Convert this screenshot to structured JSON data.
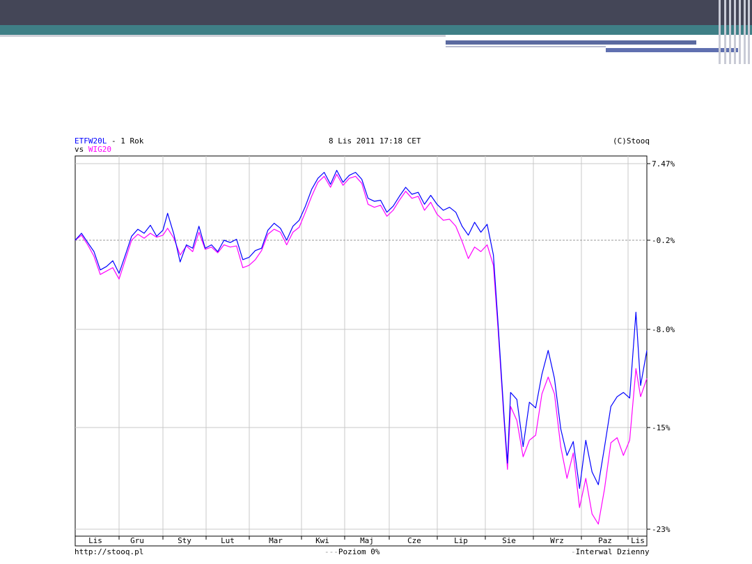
{
  "header": {
    "symbol": "ETFW20L",
    "period": " - 1 Rok",
    "vs_label": "vs ",
    "compare_symbol": "WIG20",
    "datetime": "8 Lis 2011 17:18 CET",
    "copyright": "(C)Stooq"
  },
  "footer": {
    "url": "http://stooq.pl",
    "level_label": "Poziom 0%",
    "interval_label": "Interwal Dzienny"
  },
  "colors": {
    "series_primary": "#0000ff",
    "series_secondary": "#ff00ff",
    "grid": "#c8c8c8",
    "zero_line": "#999999"
  },
  "chart_data": {
    "type": "line",
    "title": "ETFW20L - 1 Rok vs WIG20",
    "xlabel": "",
    "ylabel": "",
    "x_ticks": [
      "Lis",
      "Gru",
      "Sty",
      "Lut",
      "Mar",
      "Kwi",
      "Maj",
      "Cze",
      "Lip",
      "Sie",
      "Wrz",
      "Paz",
      "Lis"
    ],
    "y_ticks": [
      "7.47%",
      "-0.2%",
      "-8.0%",
      "-15%",
      "-23%"
    ],
    "y_tick_values": [
      7.47,
      -0.2,
      -8.0,
      -15.0,
      -23.0
    ],
    "ylim": [
      -23.0,
      7.47
    ],
    "zero_level": -0.2,
    "grid": true,
    "x_start_date": "2010-11-08",
    "x_end_date": "2011-11-08",
    "series": [
      {
        "name": "ETFW20L",
        "color": "#0000ff",
        "points": [
          [
            "2010-11-08",
            -0.2
          ],
          [
            "2010-11-12",
            0.5
          ],
          [
            "2010-11-16",
            -0.4
          ],
          [
            "2010-11-20",
            -1.2
          ],
          [
            "2010-11-24",
            -2.8
          ],
          [
            "2010-11-28",
            -2.5
          ],
          [
            "2010-12-02",
            -2.0
          ],
          [
            "2010-12-06",
            -3.1
          ],
          [
            "2010-12-10",
            -1.5
          ],
          [
            "2010-12-14",
            0.2
          ],
          [
            "2010-12-18",
            0.9
          ],
          [
            "2010-12-22",
            0.5
          ],
          [
            "2010-12-26",
            1.3
          ],
          [
            "2010-12-30",
            0.2
          ],
          [
            "2011-01-03",
            0.8
          ],
          [
            "2011-01-06",
            2.5
          ],
          [
            "2011-01-10",
            0.4
          ],
          [
            "2011-01-14",
            -2.1
          ],
          [
            "2011-01-18",
            -0.6
          ],
          [
            "2011-01-22",
            -0.9
          ],
          [
            "2011-01-26",
            1.2
          ],
          [
            "2011-01-30",
            -0.9
          ],
          [
            "2011-02-03",
            -0.6
          ],
          [
            "2011-02-07",
            -1.2
          ],
          [
            "2011-02-11",
            -0.2
          ],
          [
            "2011-02-15",
            -0.4
          ],
          [
            "2011-02-19",
            -0.1
          ],
          [
            "2011-02-23",
            -1.9
          ],
          [
            "2011-02-27",
            -1.7
          ],
          [
            "2011-03-03",
            -1.1
          ],
          [
            "2011-03-07",
            -0.9
          ],
          [
            "2011-03-11",
            0.8
          ],
          [
            "2011-03-15",
            1.5
          ],
          [
            "2011-03-19",
            1.0
          ],
          [
            "2011-03-23",
            -0.2
          ],
          [
            "2011-03-27",
            1.2
          ],
          [
            "2011-03-31",
            1.8
          ],
          [
            "2011-04-04",
            3.2
          ],
          [
            "2011-04-08",
            4.9
          ],
          [
            "2011-04-12",
            6.0
          ],
          [
            "2011-04-16",
            6.6
          ],
          [
            "2011-04-20",
            5.4
          ],
          [
            "2011-04-24",
            6.8
          ],
          [
            "2011-04-28",
            5.6
          ],
          [
            "2011-05-02",
            6.3
          ],
          [
            "2011-05-06",
            6.6
          ],
          [
            "2011-05-10",
            5.9
          ],
          [
            "2011-05-14",
            4.0
          ],
          [
            "2011-05-18",
            3.7
          ],
          [
            "2011-05-22",
            3.8
          ],
          [
            "2011-05-26",
            2.6
          ],
          [
            "2011-05-30",
            3.2
          ],
          [
            "2011-06-03",
            4.2
          ],
          [
            "2011-06-07",
            5.1
          ],
          [
            "2011-06-11",
            4.4
          ],
          [
            "2011-06-15",
            4.6
          ],
          [
            "2011-06-19",
            3.4
          ],
          [
            "2011-06-23",
            4.3
          ],
          [
            "2011-06-27",
            3.4
          ],
          [
            "2011-07-01",
            2.8
          ],
          [
            "2011-07-05",
            3.1
          ],
          [
            "2011-07-09",
            2.6
          ],
          [
            "2011-07-13",
            1.2
          ],
          [
            "2011-07-17",
            0.3
          ],
          [
            "2011-07-21",
            1.6
          ],
          [
            "2011-07-25",
            0.6
          ],
          [
            "2011-07-29",
            1.4
          ],
          [
            "2011-08-02",
            -1.5
          ],
          [
            "2011-08-05",
            -7.5
          ],
          [
            "2011-08-09",
            -14.5
          ],
          [
            "2011-08-11",
            -17.8
          ],
          [
            "2011-08-13",
            -12.5
          ],
          [
            "2011-08-17",
            -13.0
          ],
          [
            "2011-08-21",
            -16.5
          ],
          [
            "2011-08-25",
            -13.2
          ],
          [
            "2011-08-29",
            -13.6
          ],
          [
            "2011-09-02",
            -11.2
          ],
          [
            "2011-09-06",
            -9.5
          ],
          [
            "2011-09-10",
            -11.5
          ],
          [
            "2011-09-14",
            -15.1
          ],
          [
            "2011-09-18",
            -17.2
          ],
          [
            "2011-09-22",
            -16.1
          ],
          [
            "2011-09-26",
            -19.8
          ],
          [
            "2011-09-30",
            -16.0
          ],
          [
            "2011-10-04",
            -18.5
          ],
          [
            "2011-10-08",
            -19.5
          ],
          [
            "2011-10-12",
            -16.5
          ],
          [
            "2011-10-16",
            -13.5
          ],
          [
            "2011-10-20",
            -12.8
          ],
          [
            "2011-10-24",
            -12.5
          ],
          [
            "2011-10-28",
            -12.9
          ],
          [
            "2011-11-01",
            -6.5
          ],
          [
            "2011-11-04",
            -12.0
          ],
          [
            "2011-11-08",
            -9.5
          ]
        ]
      },
      {
        "name": "WIG20",
        "color": "#ff00ff",
        "points": [
          [
            "2010-11-08",
            -0.2
          ],
          [
            "2010-11-12",
            0.3
          ],
          [
            "2010-11-16",
            -0.6
          ],
          [
            "2010-11-20",
            -1.6
          ],
          [
            "2010-11-24",
            -3.2
          ],
          [
            "2010-11-28",
            -2.9
          ],
          [
            "2010-12-02",
            -2.6
          ],
          [
            "2010-12-06",
            -3.6
          ],
          [
            "2010-12-10",
            -1.9
          ],
          [
            "2010-12-14",
            -0.2
          ],
          [
            "2010-12-18",
            0.4
          ],
          [
            "2010-12-22",
            0.0
          ],
          [
            "2010-12-26",
            0.5
          ],
          [
            "2010-12-30",
            0.1
          ],
          [
            "2011-01-03",
            0.3
          ],
          [
            "2011-01-06",
            1.0
          ],
          [
            "2011-01-10",
            0.0
          ],
          [
            "2011-01-14",
            -1.5
          ],
          [
            "2011-01-18",
            -0.7
          ],
          [
            "2011-01-22",
            -1.2
          ],
          [
            "2011-01-26",
            0.6
          ],
          [
            "2011-01-30",
            -1.0
          ],
          [
            "2011-02-03",
            -0.8
          ],
          [
            "2011-02-07",
            -1.3
          ],
          [
            "2011-02-11",
            -0.6
          ],
          [
            "2011-02-15",
            -0.8
          ],
          [
            "2011-02-19",
            -0.7
          ],
          [
            "2011-02-23",
            -2.6
          ],
          [
            "2011-02-27",
            -2.4
          ],
          [
            "2011-03-03",
            -1.9
          ],
          [
            "2011-03-07",
            -1.1
          ],
          [
            "2011-03-11",
            0.4
          ],
          [
            "2011-03-15",
            0.9
          ],
          [
            "2011-03-19",
            0.6
          ],
          [
            "2011-03-23",
            -0.6
          ],
          [
            "2011-03-27",
            0.6
          ],
          [
            "2011-03-31",
            1.1
          ],
          [
            "2011-04-04",
            2.6
          ],
          [
            "2011-04-08",
            4.2
          ],
          [
            "2011-04-12",
            5.6
          ],
          [
            "2011-04-16",
            6.2
          ],
          [
            "2011-04-20",
            5.1
          ],
          [
            "2011-04-24",
            6.4
          ],
          [
            "2011-04-28",
            5.3
          ],
          [
            "2011-05-02",
            6.0
          ],
          [
            "2011-05-06",
            6.2
          ],
          [
            "2011-05-10",
            5.5
          ],
          [
            "2011-05-14",
            3.4
          ],
          [
            "2011-05-18",
            3.1
          ],
          [
            "2011-05-22",
            3.3
          ],
          [
            "2011-05-26",
            2.2
          ],
          [
            "2011-05-30",
            2.8
          ],
          [
            "2011-06-03",
            3.8
          ],
          [
            "2011-06-07",
            4.7
          ],
          [
            "2011-06-11",
            4.0
          ],
          [
            "2011-06-15",
            4.2
          ],
          [
            "2011-06-19",
            2.8
          ],
          [
            "2011-06-23",
            3.6
          ],
          [
            "2011-06-27",
            2.4
          ],
          [
            "2011-07-01",
            1.8
          ],
          [
            "2011-07-05",
            1.9
          ],
          [
            "2011-07-09",
            1.2
          ],
          [
            "2011-07-13",
            -0.3
          ],
          [
            "2011-07-17",
            -1.8
          ],
          [
            "2011-07-21",
            -0.8
          ],
          [
            "2011-07-25",
            -1.2
          ],
          [
            "2011-07-29",
            -0.6
          ],
          [
            "2011-08-02",
            -2.4
          ],
          [
            "2011-08-05",
            -8.0
          ],
          [
            "2011-08-09",
            -14.8
          ],
          [
            "2011-08-11",
            -18.3
          ],
          [
            "2011-08-13",
            -13.5
          ],
          [
            "2011-08-17",
            -14.5
          ],
          [
            "2011-08-21",
            -17.3
          ],
          [
            "2011-08-25",
            -16.0
          ],
          [
            "2011-08-29",
            -15.6
          ],
          [
            "2011-09-02",
            -12.6
          ],
          [
            "2011-09-06",
            -11.4
          ],
          [
            "2011-09-10",
            -12.6
          ],
          [
            "2011-09-14",
            -16.5
          ],
          [
            "2011-09-18",
            -19.0
          ],
          [
            "2011-09-22",
            -17.0
          ],
          [
            "2011-09-26",
            -21.3
          ],
          [
            "2011-09-30",
            -19.0
          ],
          [
            "2011-10-04",
            -21.8
          ],
          [
            "2011-10-08",
            -22.6
          ],
          [
            "2011-10-12",
            -19.8
          ],
          [
            "2011-10-16",
            -16.2
          ],
          [
            "2011-10-20",
            -15.8
          ],
          [
            "2011-10-24",
            -17.2
          ],
          [
            "2011-10-28",
            -16.0
          ],
          [
            "2011-11-01",
            -10.8
          ],
          [
            "2011-11-04",
            -12.8
          ],
          [
            "2011-11-08",
            -11.5
          ]
        ]
      }
    ]
  }
}
